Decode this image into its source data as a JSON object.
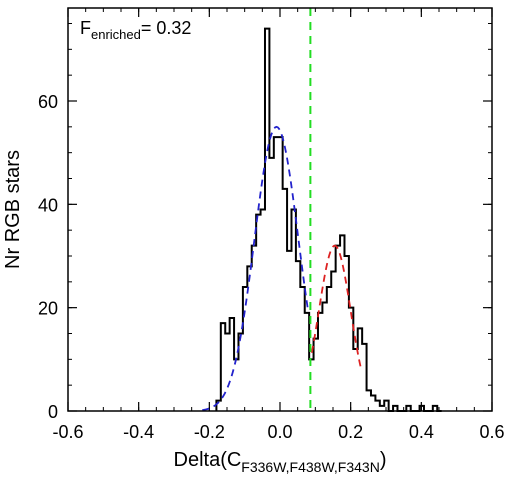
{
  "chart_data": {
    "type": "histogram",
    "xlabel": {
      "main": "Delta(C",
      "sub": "F336W,F438W,F343N",
      "close": ")"
    },
    "ylabel": "Nr RGB stars",
    "xlim": [
      -0.6,
      0.6
    ],
    "ylim": [
      0,
      78
    ],
    "x_ticks": [
      -0.6,
      -0.4,
      -0.2,
      0.0,
      0.2,
      0.4,
      0.6
    ],
    "x_tick_labels": [
      "-0.6",
      "-0.4",
      "-0.2",
      "0.0",
      "0.2",
      "0.4",
      "0.6"
    ],
    "y_ticks": [
      0,
      20,
      40,
      60
    ],
    "y_tick_labels": [
      "0",
      "20",
      "40",
      "60"
    ],
    "annotation": {
      "prefix": "F",
      "sub": "enriched",
      "suffix": "= 0.32"
    },
    "threshold_line": {
      "x": 0.086,
      "color": "#22dd22",
      "style": "dashed"
    },
    "histogram": {
      "bin_width": 0.0125,
      "bin_edges_start": -0.18,
      "counts": [
        2,
        17,
        15,
        18,
        10,
        15,
        24,
        28,
        32,
        38,
        39,
        74,
        49,
        53,
        53,
        43,
        31,
        39,
        29,
        24,
        19,
        10,
        14,
        19,
        21,
        24,
        27,
        32,
        34,
        30,
        20,
        12,
        16,
        13,
        4,
        3,
        2,
        1,
        2,
        0,
        1,
        0,
        0,
        1,
        0,
        0,
        1,
        0,
        0,
        1,
        0
      ],
      "color": "#000000"
    },
    "fits": [
      {
        "color": "#2222cc",
        "style": "dashed",
        "amplitude": 55,
        "mean": -0.01,
        "sigma": 0.062,
        "x_range": [
          -0.22,
          0.08
        ]
      },
      {
        "color": "#dd2222",
        "style": "dashed",
        "amplitude": 32,
        "mean": 0.155,
        "sigma": 0.045,
        "x_range": [
          0.09,
          0.23
        ]
      }
    ]
  }
}
